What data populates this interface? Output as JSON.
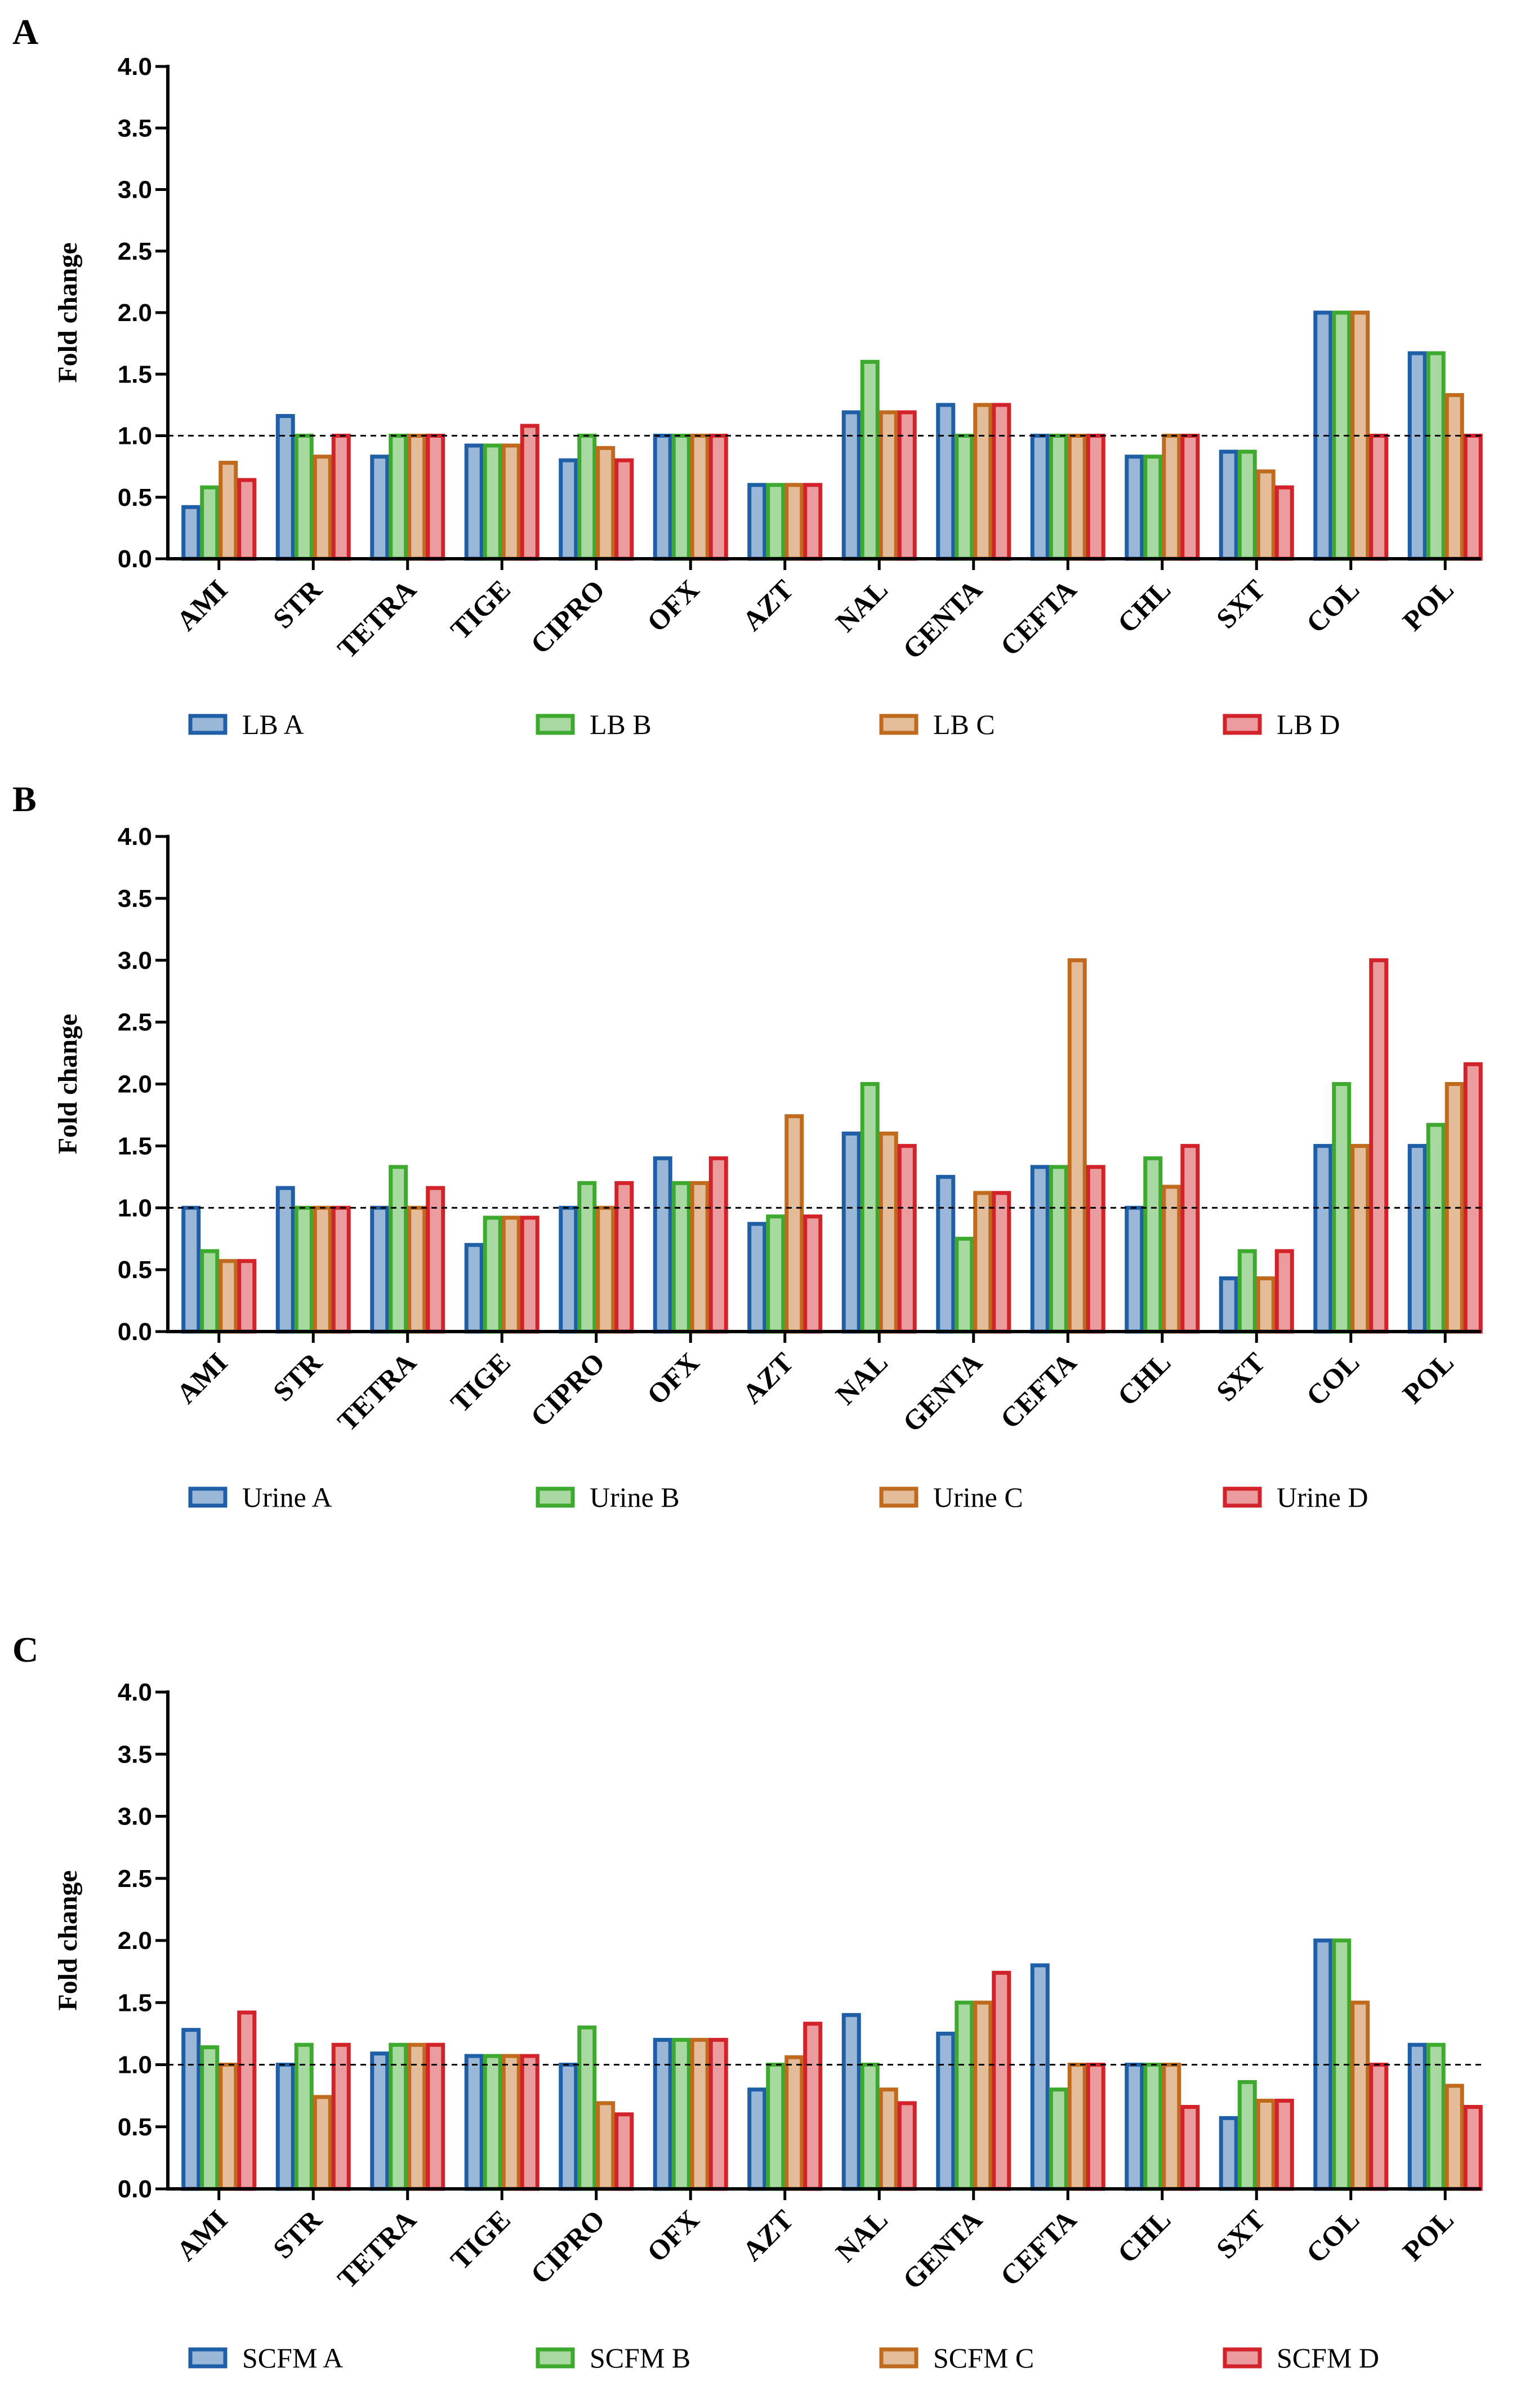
{
  "chart_data": [
    {
      "type": "bar",
      "panel": "A",
      "ylabel": "Fold change",
      "ylim": [
        0,
        4
      ],
      "yticks": [
        "0.0",
        "0.5",
        "1.0",
        "1.5",
        "2.0",
        "2.5",
        "3.0",
        "3.5",
        "4.0"
      ],
      "reference_line": 1.0,
      "categories": [
        "AMI",
        "STR",
        "TETRA",
        "TIGE",
        "CIPRO",
        "OFX",
        "AZT",
        "NAL",
        "GENTA",
        "CEFTA",
        "CHL",
        "SXT",
        "COL",
        "POL"
      ],
      "series": [
        {
          "name": "LB A",
          "color": "#1F5FA8",
          "values": [
            0.42,
            1.16,
            0.83,
            0.92,
            0.8,
            1.0,
            0.6,
            1.19,
            1.25,
            1.0,
            0.83,
            0.87,
            2.0,
            1.67
          ]
        },
        {
          "name": "LB B",
          "color": "#3DAA2F",
          "values": [
            0.58,
            1.0,
            1.0,
            0.92,
            1.0,
            1.0,
            0.6,
            1.6,
            1.0,
            1.0,
            0.83,
            0.87,
            2.0,
            1.67
          ]
        },
        {
          "name": "LB C",
          "color": "#C06A1E",
          "values": [
            0.78,
            0.83,
            1.0,
            0.92,
            0.9,
            1.0,
            0.6,
            1.19,
            1.25,
            1.0,
            1.0,
            0.71,
            2.0,
            1.33
          ]
        },
        {
          "name": "LB D",
          "color": "#D2232A",
          "values": [
            0.64,
            1.0,
            1.0,
            1.08,
            0.8,
            1.0,
            0.6,
            1.19,
            1.25,
            1.0,
            1.0,
            0.58,
            1.0,
            1.0
          ]
        }
      ]
    },
    {
      "type": "bar",
      "panel": "B",
      "ylabel": "Fold change",
      "ylim": [
        0,
        4
      ],
      "yticks": [
        "0.0",
        "0.5",
        "1.0",
        "1.5",
        "2.0",
        "2.5",
        "3.0",
        "3.5",
        "4.0"
      ],
      "reference_line": 1.0,
      "categories": [
        "AMI",
        "STR",
        "TETRA",
        "TIGE",
        "CIPRO",
        "OFX",
        "AZT",
        "NAL",
        "GENTA",
        "CEFTA",
        "CHL",
        "SXT",
        "COL",
        "POL"
      ],
      "series": [
        {
          "name": "Urine A",
          "color": "#1F5FA8",
          "values": [
            1.0,
            1.16,
            1.0,
            0.7,
            1.0,
            1.4,
            0.87,
            1.6,
            1.25,
            1.33,
            1.0,
            0.43,
            1.5,
            1.5
          ]
        },
        {
          "name": "Urine B",
          "color": "#3DAA2F",
          "values": [
            0.65,
            1.0,
            1.33,
            0.92,
            1.2,
            1.2,
            0.93,
            2.0,
            0.75,
            1.33,
            1.4,
            0.65,
            2.0,
            1.67
          ]
        },
        {
          "name": "Urine C",
          "color": "#C06A1E",
          "values": [
            0.57,
            1.0,
            1.0,
            0.92,
            1.0,
            1.2,
            1.74,
            1.6,
            1.12,
            3.0,
            1.17,
            0.43,
            1.5,
            2.0
          ]
        },
        {
          "name": "Urine D",
          "color": "#D2232A",
          "values": [
            0.57,
            1.0,
            1.16,
            0.92,
            1.2,
            1.4,
            0.93,
            1.5,
            1.12,
            1.33,
            1.5,
            0.65,
            3.0,
            2.16
          ]
        }
      ]
    },
    {
      "type": "bar",
      "panel": "C",
      "ylabel": "Fold change",
      "ylim": [
        0,
        4
      ],
      "yticks": [
        "0.0",
        "0.5",
        "1.0",
        "1.5",
        "2.0",
        "2.5",
        "3.0",
        "3.5",
        "4.0"
      ],
      "reference_line": 1.0,
      "categories": [
        "AMI",
        "STR",
        "TETRA",
        "TIGE",
        "CIPRO",
        "OFX",
        "AZT",
        "NAL",
        "GENTA",
        "CEFTA",
        "CHL",
        "SXT",
        "COL",
        "POL"
      ],
      "series": [
        {
          "name": "SCFM A",
          "color": "#1F5FA8",
          "values": [
            1.28,
            1.0,
            1.09,
            1.07,
            1.0,
            1.2,
            0.8,
            1.4,
            1.25,
            1.8,
            1.0,
            0.57,
            2.0,
            1.16
          ]
        },
        {
          "name": "SCFM B",
          "color": "#3DAA2F",
          "values": [
            1.14,
            1.16,
            1.16,
            1.07,
            1.3,
            1.2,
            1.0,
            1.0,
            1.5,
            0.8,
            1.0,
            0.86,
            2.0,
            1.16
          ]
        },
        {
          "name": "SCFM C",
          "color": "#C06A1E",
          "values": [
            1.0,
            0.74,
            1.16,
            1.07,
            0.69,
            1.2,
            1.06,
            0.8,
            1.5,
            1.0,
            1.0,
            0.71,
            1.5,
            0.83
          ]
        },
        {
          "name": "SCFM D",
          "color": "#D2232A",
          "values": [
            1.42,
            1.16,
            1.16,
            1.07,
            0.6,
            1.2,
            1.33,
            0.69,
            1.74,
            1.0,
            0.66,
            0.71,
            1.0,
            0.66
          ]
        }
      ]
    }
  ]
}
